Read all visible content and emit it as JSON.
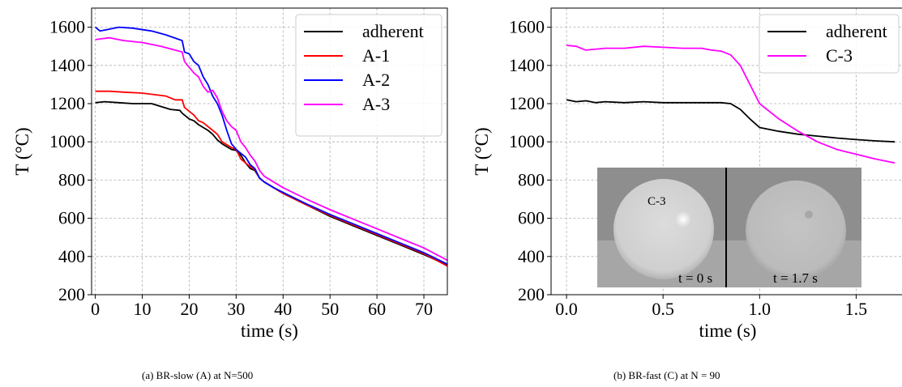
{
  "chart_data": [
    {
      "type": "line",
      "caption": "(a) BR-slow (A) at N=500",
      "xlabel": "time (s)",
      "ylabel": "T (°C)",
      "xlim": [
        -0.8,
        75
      ],
      "ylim": [
        200,
        1700
      ],
      "xticks": [
        0,
        10,
        20,
        30,
        40,
        50,
        60,
        70
      ],
      "yticks": [
        200,
        400,
        600,
        800,
        1000,
        1200,
        1400,
        1600
      ],
      "grid": true,
      "legend": "top-right",
      "series": [
        {
          "name": "adherent",
          "color": "#000000",
          "x": [
            0,
            2,
            5,
            8,
            12,
            16,
            18,
            18.5,
            20,
            21,
            22,
            23,
            24,
            25,
            26,
            27,
            28,
            29,
            30,
            31,
            32,
            33,
            34,
            35,
            36,
            38,
            40,
            45,
            50,
            55,
            60,
            65,
            70,
            75
          ],
          "y": [
            1205,
            1210,
            1205,
            1200,
            1200,
            1170,
            1165,
            1150,
            1120,
            1110,
            1090,
            1075,
            1060,
            1040,
            1010,
            990,
            975,
            960,
            955,
            930,
            890,
            860,
            850,
            810,
            790,
            760,
            730,
            670,
            610,
            560,
            510,
            460,
            410,
            355
          ]
        },
        {
          "name": "A-1",
          "color": "#ff0000",
          "x": [
            0,
            3,
            6,
            10,
            15,
            17,
            18.5,
            19,
            20,
            21,
            22,
            23,
            24,
            25,
            26,
            27,
            28,
            29,
            30,
            31,
            32,
            33,
            34,
            35,
            36,
            38,
            40,
            45,
            50,
            55,
            60,
            65,
            70,
            75
          ],
          "y": [
            1265,
            1265,
            1260,
            1255,
            1240,
            1220,
            1220,
            1180,
            1160,
            1140,
            1110,
            1100,
            1080,
            1060,
            1040,
            1000,
            985,
            970,
            960,
            910,
            890,
            870,
            855,
            810,
            790,
            760,
            730,
            670,
            615,
            565,
            515,
            465,
            415,
            350
          ]
        },
        {
          "name": "A-2",
          "color": "#0000ff",
          "x": [
            0,
            1,
            3,
            5,
            8,
            12,
            15,
            18.5,
            19,
            20,
            21,
            22,
            23,
            24,
            25,
            26,
            27,
            28,
            29,
            30,
            31,
            32,
            33,
            34,
            35,
            36,
            38,
            40,
            45,
            50,
            55,
            60,
            65,
            70,
            75
          ],
          "y": [
            1600,
            1580,
            1590,
            1600,
            1595,
            1580,
            1560,
            1530,
            1470,
            1460,
            1420,
            1400,
            1340,
            1300,
            1240,
            1200,
            1140,
            1060,
            990,
            960,
            940,
            920,
            880,
            860,
            810,
            790,
            760,
            735,
            675,
            620,
            570,
            520,
            470,
            420,
            360
          ]
        },
        {
          "name": "A-3",
          "color": "#ff00ff",
          "x": [
            0,
            3,
            6,
            10,
            14,
            17,
            18.5,
            19,
            20,
            21,
            22,
            23,
            24,
            25,
            26,
            27,
            28,
            29,
            30,
            31,
            32,
            33,
            34,
            35,
            36,
            38,
            40,
            45,
            50,
            55,
            60,
            65,
            70,
            75
          ],
          "y": [
            1535,
            1545,
            1530,
            1520,
            1500,
            1480,
            1470,
            1420,
            1390,
            1360,
            1340,
            1290,
            1260,
            1270,
            1230,
            1160,
            1110,
            1080,
            1060,
            1000,
            970,
            930,
            900,
            850,
            820,
            790,
            760,
            700,
            645,
            595,
            545,
            495,
            445,
            380
          ]
        }
      ]
    },
    {
      "type": "line",
      "caption": "(b) BR-fast (C) at N = 90",
      "xlabel": "time (s)",
      "ylabel": "T (°C)",
      "xlim": [
        -0.08,
        1.75
      ],
      "ylim": [
        200,
        1700
      ],
      "xticks": [
        0.0,
        0.5,
        1.0,
        1.5
      ],
      "xticklabels": [
        "0.0",
        "0.5",
        "1.0",
        "1.5"
      ],
      "yticks": [
        200,
        400,
        600,
        800,
        1000,
        1200,
        1400,
        1600
      ],
      "grid": true,
      "legend": "top-right",
      "series": [
        {
          "name": "adherent",
          "color": "#000000",
          "x": [
            0,
            0.05,
            0.1,
            0.15,
            0.2,
            0.3,
            0.4,
            0.5,
            0.6,
            0.7,
            0.8,
            0.85,
            0.9,
            0.95,
            1.0,
            1.1,
            1.2,
            1.3,
            1.4,
            1.5,
            1.6,
            1.7
          ],
          "y": [
            1220,
            1210,
            1215,
            1205,
            1210,
            1205,
            1210,
            1205,
            1205,
            1205,
            1205,
            1200,
            1170,
            1120,
            1075,
            1055,
            1040,
            1030,
            1020,
            1012,
            1005,
            1000
          ]
        },
        {
          "name": "C-3",
          "color": "#ff00ff",
          "x": [
            0,
            0.05,
            0.1,
            0.2,
            0.3,
            0.4,
            0.5,
            0.6,
            0.7,
            0.75,
            0.8,
            0.85,
            0.9,
            0.95,
            1.0,
            1.1,
            1.2,
            1.3,
            1.4,
            1.5,
            1.6,
            1.7
          ],
          "y": [
            1505,
            1500,
            1480,
            1490,
            1490,
            1500,
            1495,
            1490,
            1490,
            1480,
            1475,
            1455,
            1400,
            1300,
            1200,
            1120,
            1055,
            1000,
            960,
            935,
            910,
            890
          ]
        }
      ],
      "inset": {
        "labels": [
          "C-3",
          "t = 0 s",
          "t = 1.7 s"
        ]
      }
    }
  ]
}
